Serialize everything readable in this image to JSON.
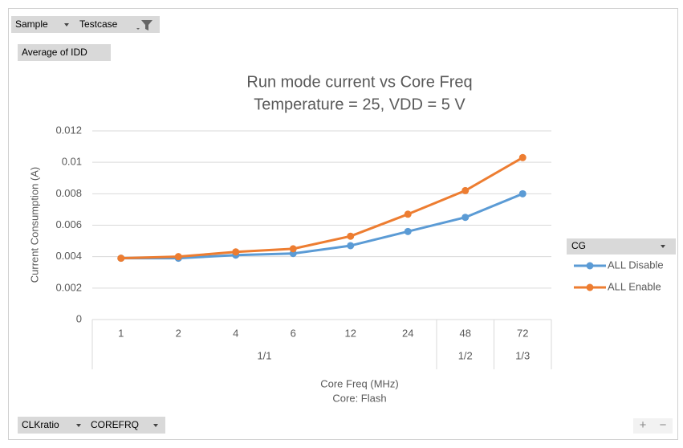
{
  "chart_data": {
    "type": "line",
    "title": "Run mode current vs Core Freq",
    "subtitle": "Temperature = 25, VDD = 5 V",
    "xlabel": [
      "Core Freq (MHz)",
      "Core: Flash"
    ],
    "ylabel": "Current Consumption (A)",
    "categories": [
      "1",
      "2",
      "4",
      "6",
      "12",
      "24",
      "48",
      "72"
    ],
    "category_groups": [
      "1/1",
      "1/1",
      "1/1",
      "1/1",
      "1/1",
      "1/1",
      "1/2",
      "1/3"
    ],
    "ylim": [
      0,
      0.012
    ],
    "yticks": [
      0,
      0.002,
      0.004,
      0.006,
      0.008,
      0.01,
      0.012
    ],
    "grid": true,
    "legend_title": "CG",
    "legend": "right",
    "series": [
      {
        "name": "ALL Disable",
        "color": "#5b9bd5",
        "values": [
          0.0039,
          0.0039,
          0.0041,
          0.0042,
          0.0047,
          0.0056,
          0.0065,
          0.008
        ]
      },
      {
        "name": "ALL Enable",
        "color": "#ed7d31",
        "values": [
          0.0039,
          0.004,
          0.0043,
          0.0045,
          0.0053,
          0.0067,
          0.0082,
          0.0103
        ]
      }
    ]
  },
  "ui": {
    "filter_fields": [
      "Sample",
      "Testcase"
    ],
    "value_field": "Average of IDD",
    "axis_fields": [
      "CLKratio",
      "COREFRQ"
    ],
    "zoom": [
      "+",
      "−"
    ]
  }
}
